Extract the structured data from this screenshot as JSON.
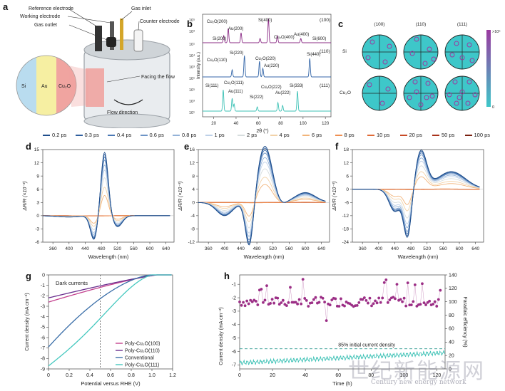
{
  "panels": {
    "a": "a",
    "b": "b",
    "c": "c",
    "d": "d",
    "e": "e",
    "f": "f",
    "g": "g",
    "h": "h"
  },
  "panel_a": {
    "labels": [
      "Reference electrode",
      "Working electrode",
      "Gas outlet",
      "Gas inlet",
      "Counter electrode",
      "Facing the flow",
      "Flow direction"
    ],
    "layers": [
      "Si",
      "Au",
      "Cu₂O"
    ],
    "colors": {
      "si": "#b9dcef",
      "au": "#f6efa2",
      "cu2o": "#f0a4a0"
    }
  },
  "panel_b": {
    "xlabel": "2θ (°)",
    "ylabel": "Intensity (a.u.)",
    "x_ticks": [
      "20",
      "40",
      "60",
      "80",
      "100",
      "120"
    ],
    "orientations": [
      "(100)",
      "(110)",
      "(111)"
    ],
    "traces": [
      {
        "color": "#8b2c86",
        "labels": [
          "Cu₂O(200)",
          "Au(200)",
          "Si(400)",
          "Cu₂O(400)",
          "Au(400)",
          "Si(200)",
          "Si(600)"
        ]
      },
      {
        "color": "#3466a8",
        "labels": [
          "Si(220)",
          "Cu₂O(110)",
          "Cu₂O(220)",
          "Au(220)",
          "Si(440)"
        ]
      },
      {
        "color": "#3ec2b6",
        "labels": [
          "Si(111)",
          "Cu₂O(111)",
          "Au(111)",
          "Si(222)",
          "Cu₂O(222)",
          "Au(222)",
          "Si(333)"
        ]
      }
    ],
    "y_ticks": [
      "10¹",
      "10²",
      "10³",
      "10⁴",
      "10⁵"
    ]
  },
  "panel_c": {
    "columns": [
      "(100)",
      "(110)",
      "(111)"
    ],
    "rows": [
      "Si",
      "Cu₂O"
    ],
    "colorbar_top": ">10⁵",
    "colorbar_bottom": "0"
  },
  "legend_times": [
    "0.2 ps",
    "0.3 ps",
    "0.4 ps",
    "0.6 ps",
    "0.8 ps",
    "1 ps",
    "2 ps",
    "4 ps",
    "6 ps",
    "8 ps",
    "10 ps",
    "20 ps",
    "50 ps",
    "100 ps"
  ],
  "legend_colors": [
    "#1f4e8c",
    "#2f5f9e",
    "#4a78b4",
    "#6d94c6",
    "#93b2d8",
    "#bdd0e8",
    "#d6ddde",
    "#f2d2a8",
    "#f2b47a",
    "#ef8f52",
    "#e06a36",
    "#c84a26",
    "#a8321a",
    "#7a2010"
  ],
  "panel_def": {
    "xlabel": "Wavelength (nm)",
    "ylabel": "ΔR/R (×10⁻³)",
    "x_ticks": [
      "360",
      "400",
      "440",
      "480",
      "520",
      "560",
      "600",
      "640"
    ],
    "d_yticks": [
      "-6",
      "-3",
      "0",
      "3",
      "6",
      "9",
      "12",
      "15"
    ],
    "e_yticks": [
      "-12",
      "-8",
      "-4",
      "0",
      "4",
      "8",
      "12",
      "16"
    ],
    "f_yticks": [
      "-24",
      "-18",
      "-12",
      "-6",
      "0",
      "6",
      "12",
      "18"
    ]
  },
  "panel_g": {
    "xlabel": "Potential versus RHE (V)",
    "ylabel": "Current density (mA cm⁻²)",
    "x_ticks": [
      "0",
      "0.2",
      "0.4",
      "0.6",
      "0.8",
      "1.0",
      "1.2"
    ],
    "y_ticks": [
      "0",
      "-1",
      "-2",
      "-3",
      "-4",
      "-5",
      "-6",
      "-7",
      "-8",
      "-9"
    ],
    "annotation": "Dark currents",
    "series": [
      {
        "name": "Poly-Cu₂O(100)",
        "color": "#c4428f"
      },
      {
        "name": "Poly-Cu₂O(110)",
        "color": "#6a2f8e"
      },
      {
        "name": "Conventional",
        "color": "#3a6ea8"
      },
      {
        "name": "Poly-Cu₂O(111)",
        "color": "#45c8bf"
      }
    ]
  },
  "panel_h": {
    "xlabel": "Time (h)",
    "ylabel_left": "Current density (mA cm⁻²)",
    "ylabel_right": "Faradaic efficiency (%)",
    "x_ticks": [
      "0",
      "20",
      "40",
      "60",
      "80",
      "100",
      "120"
    ],
    "y_left_ticks": [
      "-1",
      "-2",
      "-3",
      "-4",
      "-5",
      "-6",
      "-7"
    ],
    "y_right_ticks": [
      "140",
      "120",
      "100",
      "80",
      "60",
      "40",
      "20",
      "0"
    ],
    "annotation": "85% initial current density",
    "fe_color": "#9c2f86",
    "cd_color": "#3ec2b6"
  },
  "watermark": {
    "text": "世纪新能源网",
    "sub": "Century new energy network"
  }
}
